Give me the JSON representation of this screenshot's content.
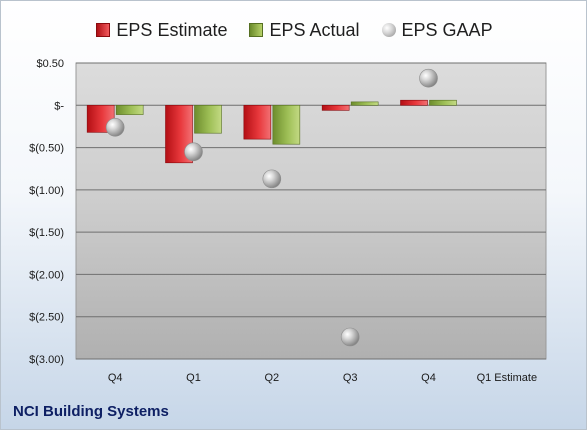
{
  "chart_data": {
    "type": "bar",
    "title": "",
    "categories": [
      "Q4",
      "Q1",
      "Q2",
      "Q3",
      "Q4",
      "Q1 Estimate"
    ],
    "series": [
      {
        "name": "EPS Estimate",
        "kind": "bar",
        "color": "#c8191e",
        "values": [
          -0.32,
          -0.68,
          -0.4,
          -0.06,
          0.06,
          null
        ]
      },
      {
        "name": "EPS Actual",
        "kind": "bar",
        "color": "#8cac45",
        "values": [
          -0.11,
          -0.33,
          -0.46,
          0.04,
          0.06,
          null
        ]
      },
      {
        "name": "EPS GAAP",
        "kind": "marker",
        "color": "#b4b4b4",
        "values": [
          -0.26,
          -0.55,
          -0.87,
          -2.74,
          0.32,
          null
        ]
      }
    ],
    "y_ticks": [
      "$0.50",
      "$-",
      "$(0.50)",
      "$(1.00)",
      "$(1.50)",
      "$(2.00)",
      "$(2.50)",
      "$(3.00)"
    ],
    "y_tick_values": [
      0.5,
      0,
      -0.5,
      -1.0,
      -1.5,
      -2.0,
      -2.5,
      -3.0
    ],
    "ylim": [
      -3.0,
      0.5
    ],
    "grid": true,
    "legend_position": "top"
  },
  "footer": {
    "company": "NCI Building Systems"
  }
}
